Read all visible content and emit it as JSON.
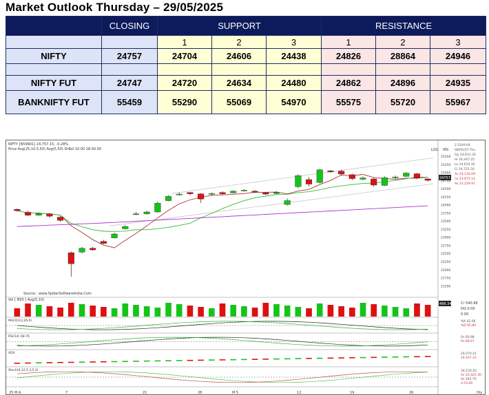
{
  "title": "Market Outlook Thursday – 29/05/2025",
  "table": {
    "headers": {
      "closing": "CLOSING",
      "support": "SUPPORT",
      "resistance": "RESISTANCE"
    },
    "levels": [
      "1",
      "2",
      "3",
      "1",
      "2",
      "3"
    ],
    "rows": [
      {
        "name": "NIFTY",
        "closing": "24757",
        "s1": "24704",
        "s2": "24606",
        "s3": "24438",
        "r1": "24826",
        "r2": "28864",
        "r3": "24946"
      },
      {
        "name": "NIFTY FUT",
        "closing": "24747",
        "s1": "24720",
        "s2": "24634",
        "s3": "24480",
        "r1": "24862",
        "r2": "24896",
        "r3": "24935"
      },
      {
        "name": "BANKNIFTY FUT",
        "closing": "55459",
        "s1": "55290",
        "s2": "55069",
        "s3": "54970",
        "r1": "55575",
        "r2": "55720",
        "r3": "55967"
      }
    ]
  },
  "chart": {
    "header_line1": "NIFTY [N59901] 24,757.15, -0.28%",
    "header_line2": "Price Avg(25,10,5,50) Avg(5,50) DrBol 10.00 18.00.00",
    "log_label": "LOG",
    "irs_label": "IRS",
    "source": "Source : www.SpiderSoftwareIndia.Com",
    "price_label": "24757.15",
    "side_info": [
      "2.2249.64",
      "08/05/25 Thu",
      "Op 24,631.30",
      "Hi 24,447.25",
      "Lo 24,610.30",
      "Cl 24,725.50",
      "Av 24,116.09",
      "Av 23,675.14",
      "Av 23,229.91"
    ],
    "price_axis": [
      "25500",
      "25250",
      "25000",
      "24750",
      "24500",
      "24250",
      "24000",
      "23750",
      "23500",
      "23250",
      "23000",
      "22750",
      "22500",
      "22250",
      "22000",
      "21750",
      "21500"
    ],
    "volume_label": "Vol [ N50 ] Avg(5,10)",
    "volume_value": "486.34",
    "volume_side": [
      "Cr 540.96",
      "DQ 0.00",
      "0.00"
    ],
    "panels": [
      {
        "label": "MACD(12,26,9)",
        "side": [
          "%K 42.66",
          "%D 95.80"
        ]
      },
      {
        "label": "RSI(14) 68.76",
        "side": [
          "Rs 60.88",
          "Rs 68.67"
        ]
      },
      {
        "label": "ADX",
        "side": [
          "24,070.41",
          "24,447.25"
        ]
      },
      {
        "label": "Stoch(9,12,5,3,5,3)",
        "side": [
          "24,150.20",
          "Av 24,425.30",
          "Av 345.70",
          "3.53.00"
        ]
      }
    ],
    "x_axis": [
      "25 M A",
      "7",
      "21",
      "28",
      "M 5",
      "12",
      "19",
      "26",
      "Dly"
    ],
    "candles": [
      {
        "o": 23860,
        "c": 23820,
        "h": 23890,
        "l": 23790
      },
      {
        "o": 23770,
        "c": 23680,
        "h": 23820,
        "l": 23650
      },
      {
        "o": 23680,
        "c": 23730,
        "h": 23760,
        "l": 23660
      },
      {
        "o": 23720,
        "c": 23650,
        "h": 23750,
        "l": 23600
      },
      {
        "o": 23620,
        "c": 23520,
        "h": 23650,
        "l": 23480
      },
      {
        "o": 22520,
        "c": 22180,
        "h": 22560,
        "l": 21780
      },
      {
        "o": 22540,
        "c": 22660,
        "h": 22700,
        "l": 22500
      },
      {
        "o": 22660,
        "c": 22610,
        "h": 22700,
        "l": 22580
      },
      {
        "o": 22870,
        "c": 22810,
        "h": 22920,
        "l": 22780
      },
      {
        "o": 22980,
        "c": 23100,
        "h": 23140,
        "l": 22960
      },
      {
        "o": 23260,
        "c": 23330,
        "h": 23380,
        "l": 23240
      },
      {
        "o": 23700,
        "c": 23720,
        "h": 23780,
        "l": 23680
      },
      {
        "o": 23720,
        "c": 23780,
        "h": 23820,
        "l": 23700
      },
      {
        "o": 23780,
        "c": 24050,
        "h": 24110,
        "l": 23760
      },
      {
        "o": 24130,
        "c": 24260,
        "h": 24300,
        "l": 24110
      },
      {
        "o": 24320,
        "c": 24330,
        "h": 24380,
        "l": 24290
      },
      {
        "o": 24380,
        "c": 24340,
        "h": 24400,
        "l": 24300
      },
      {
        "o": 24340,
        "c": 24180,
        "h": 24360,
        "l": 24060
      },
      {
        "o": 24330,
        "c": 24350,
        "h": 24380,
        "l": 24300
      },
      {
        "o": 24380,
        "c": 24340,
        "h": 24420,
        "l": 24310
      },
      {
        "o": 24370,
        "c": 24420,
        "h": 24450,
        "l": 24350
      },
      {
        "o": 24440,
        "c": 24450,
        "h": 24480,
        "l": 24410
      },
      {
        "o": 24420,
        "c": 24390,
        "h": 24460,
        "l": 24370
      },
      {
        "o": 24370,
        "c": 24330,
        "h": 24400,
        "l": 24300
      },
      {
        "o": 24350,
        "c": 24380,
        "h": 24420,
        "l": 24320
      },
      {
        "o": 24010,
        "c": 24130,
        "h": 24200,
        "l": 23980
      },
      {
        "o": 24560,
        "c": 24900,
        "h": 24950,
        "l": 24510
      },
      {
        "o": 24780,
        "c": 24640,
        "h": 24860,
        "l": 24570
      },
      {
        "o": 24690,
        "c": 25080,
        "h": 25110,
        "l": 24660
      },
      {
        "o": 25050,
        "c": 25020,
        "h": 25080,
        "l": 24990
      },
      {
        "o": 25040,
        "c": 24950,
        "h": 25090,
        "l": 24900
      },
      {
        "o": 24930,
        "c": 24810,
        "h": 24960,
        "l": 24760
      },
      {
        "o": 24790,
        "c": 24830,
        "h": 24880,
        "l": 24760
      },
      {
        "o": 24800,
        "c": 24610,
        "h": 24830,
        "l": 24560
      },
      {
        "o": 24600,
        "c": 24840,
        "h": 24880,
        "l": 24580
      },
      {
        "o": 24840,
        "c": 24860,
        "h": 24910,
        "l": 24800
      },
      {
        "o": 24880,
        "c": 24980,
        "h": 25010,
        "l": 24860
      },
      {
        "o": 24960,
        "c": 24830,
        "h": 24980,
        "l": 24790
      },
      {
        "o": 24800,
        "c": 24757,
        "h": 24830,
        "l": 24710
      }
    ]
  }
}
